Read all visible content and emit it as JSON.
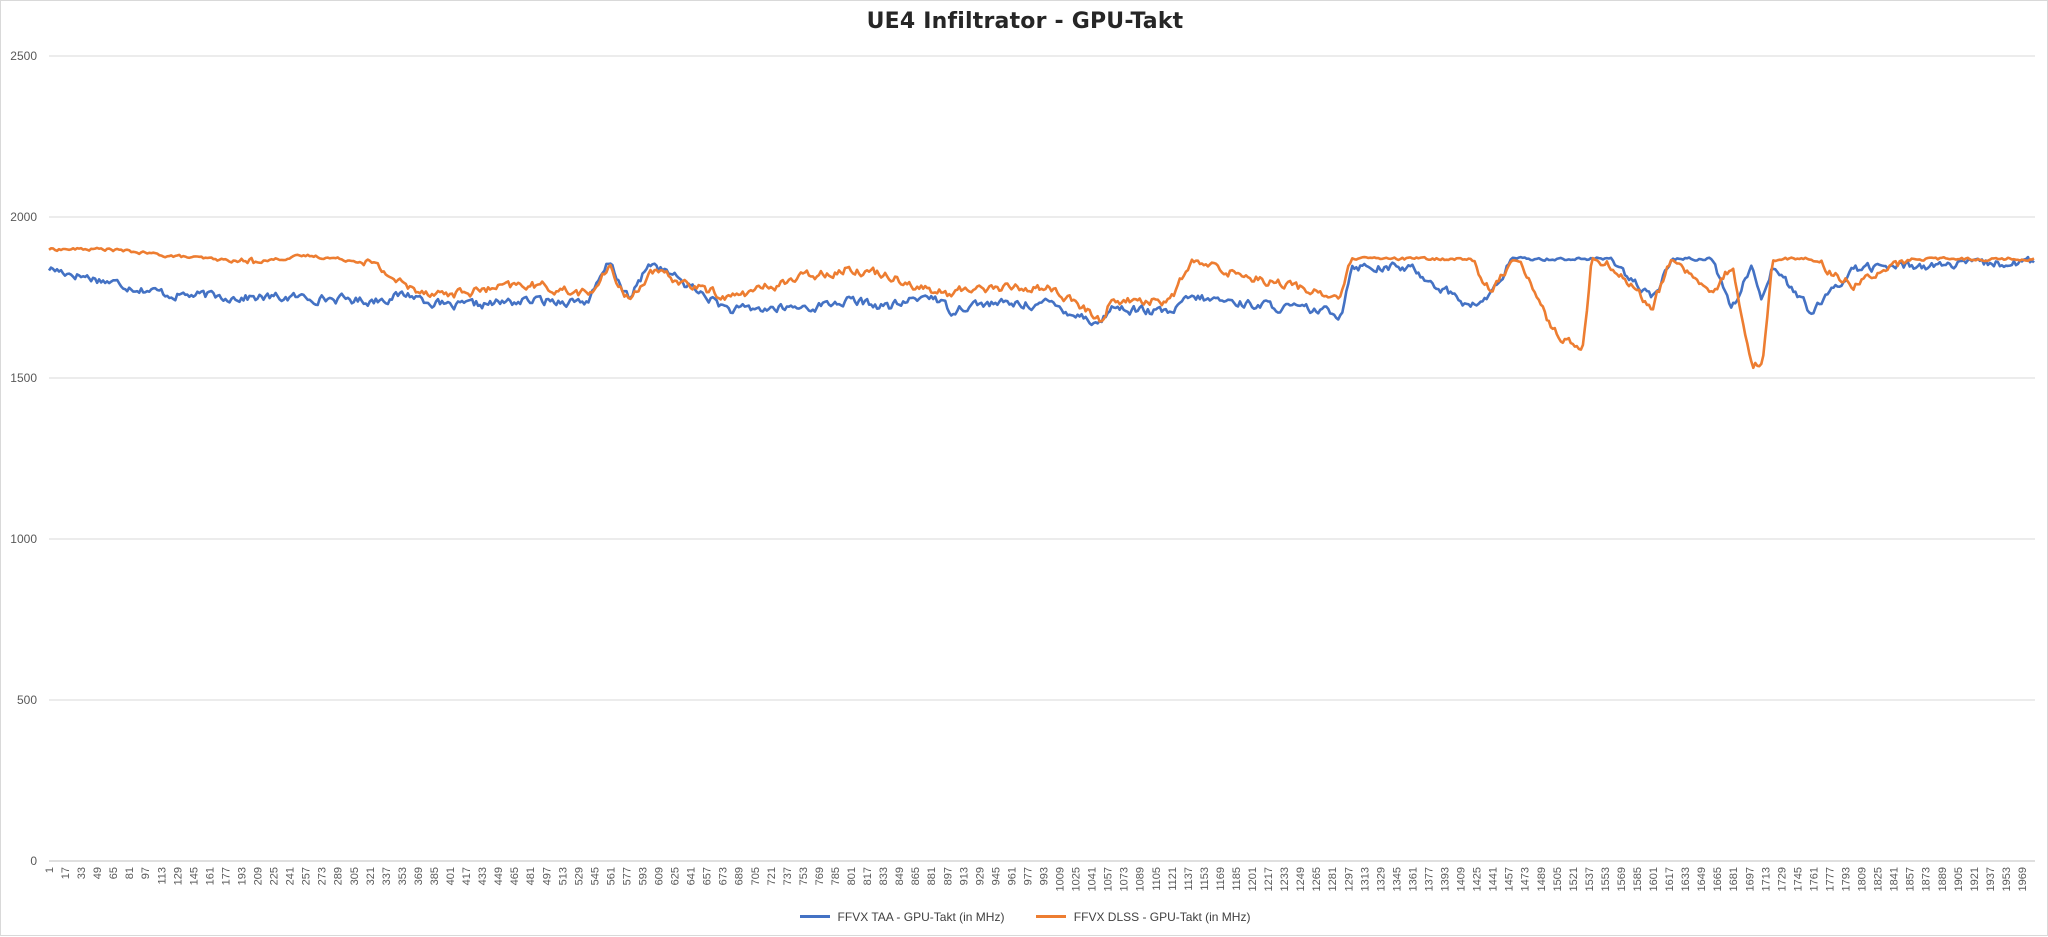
{
  "chart_data": {
    "type": "line",
    "title": "UE4 Infiltrator - GPU-Takt",
    "xlabel": "",
    "ylabel": "",
    "ylim": [
      0,
      2500
    ],
    "yticks": [
      0,
      500,
      1000,
      1500,
      2000,
      2500
    ],
    "xlim": [
      1,
      1982
    ],
    "xtick_start": 1,
    "xtick_step": 16,
    "grid": "horizontal",
    "legend_position": "bottom",
    "x_breakpoints": [
      1,
      60,
      120,
      200,
      260,
      320,
      360,
      400,
      480,
      540,
      560,
      580,
      600,
      680,
      760,
      800,
      840,
      880,
      900,
      920,
      1000,
      1050,
      1060,
      1120,
      1140,
      1290,
      1300,
      1360,
      1420,
      1440,
      1460,
      1470,
      1500,
      1530,
      1540,
      1560,
      1600,
      1620,
      1660,
      1680,
      1700,
      1710,
      1720,
      1760,
      1800,
      1860,
      1900,
      1982
    ],
    "series": [
      {
        "name": "FFVX TAA - GPU-Takt (in MHz)",
        "color": "#4472C4",
        "values": [
          1840,
          1800,
          1760,
          1750,
          1750,
          1740,
          1760,
          1720,
          1740,
          1740,
          1860,
          1740,
          1860,
          1710,
          1720,
          1740,
          1720,
          1760,
          1710,
          1730,
          1730,
          1670,
          1720,
          1700,
          1750,
          1700,
          1850,
          1840,
          1720,
          1760,
          1870,
          1870,
          1870,
          1870,
          1870,
          1870,
          1740,
          1870,
          1870,
          1720,
          1850,
          1750,
          1850,
          1700,
          1840,
          1850,
          1850,
          1860
        ]
      },
      {
        "name": "FFVX DLSS - GPU-Takt (in MHz)",
        "color": "#ED7D31",
        "values": [
          1900,
          1900,
          1880,
          1860,
          1880,
          1860,
          1780,
          1760,
          1790,
          1760,
          1840,
          1740,
          1830,
          1750,
          1820,
          1840,
          1820,
          1770,
          1760,
          1780,
          1780,
          1680,
          1740,
          1740,
          1860,
          1750,
          1870,
          1870,
          1870,
          1760,
          1870,
          1860,
          1650,
          1580,
          1870,
          1850,
          1720,
          1870,
          1760,
          1850,
          1540,
          1540,
          1870,
          1870,
          1790,
          1870,
          1870,
          1870
        ]
      }
    ]
  }
}
